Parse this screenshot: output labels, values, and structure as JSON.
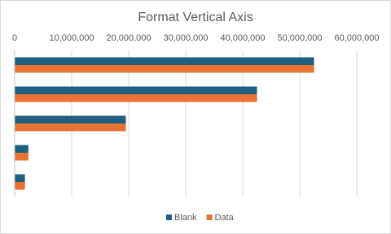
{
  "chart_data": {
    "type": "hbar",
    "title": "Format Vertical Axis",
    "categories": [
      null,
      null,
      null,
      null,
      null
    ],
    "series": [
      {
        "name": "Blank",
        "color": "#1f5f7f",
        "values": [
          52500000,
          42500000,
          19500000,
          2400000,
          1800000
        ]
      },
      {
        "name": "Data",
        "color": "#e97132",
        "values": [
          52500000,
          42500000,
          19500000,
          2400000,
          1800000
        ]
      }
    ],
    "xlim": [
      0,
      60000000
    ],
    "xticks": [
      0,
      {
        "value": 10000000,
        "label": "10,000,000"
      },
      {
        "value": 20000000,
        "label": "20,000,000"
      },
      {
        "value": 30000000,
        "label": "30,000,000"
      },
      {
        "value": 40000000,
        "label": "40,000,000"
      },
      {
        "value": 50000000,
        "label": "50,000,000"
      },
      {
        "value": 60000000,
        "label": "60,000,000"
      }
    ],
    "grid": true,
    "legend": "bottom"
  }
}
